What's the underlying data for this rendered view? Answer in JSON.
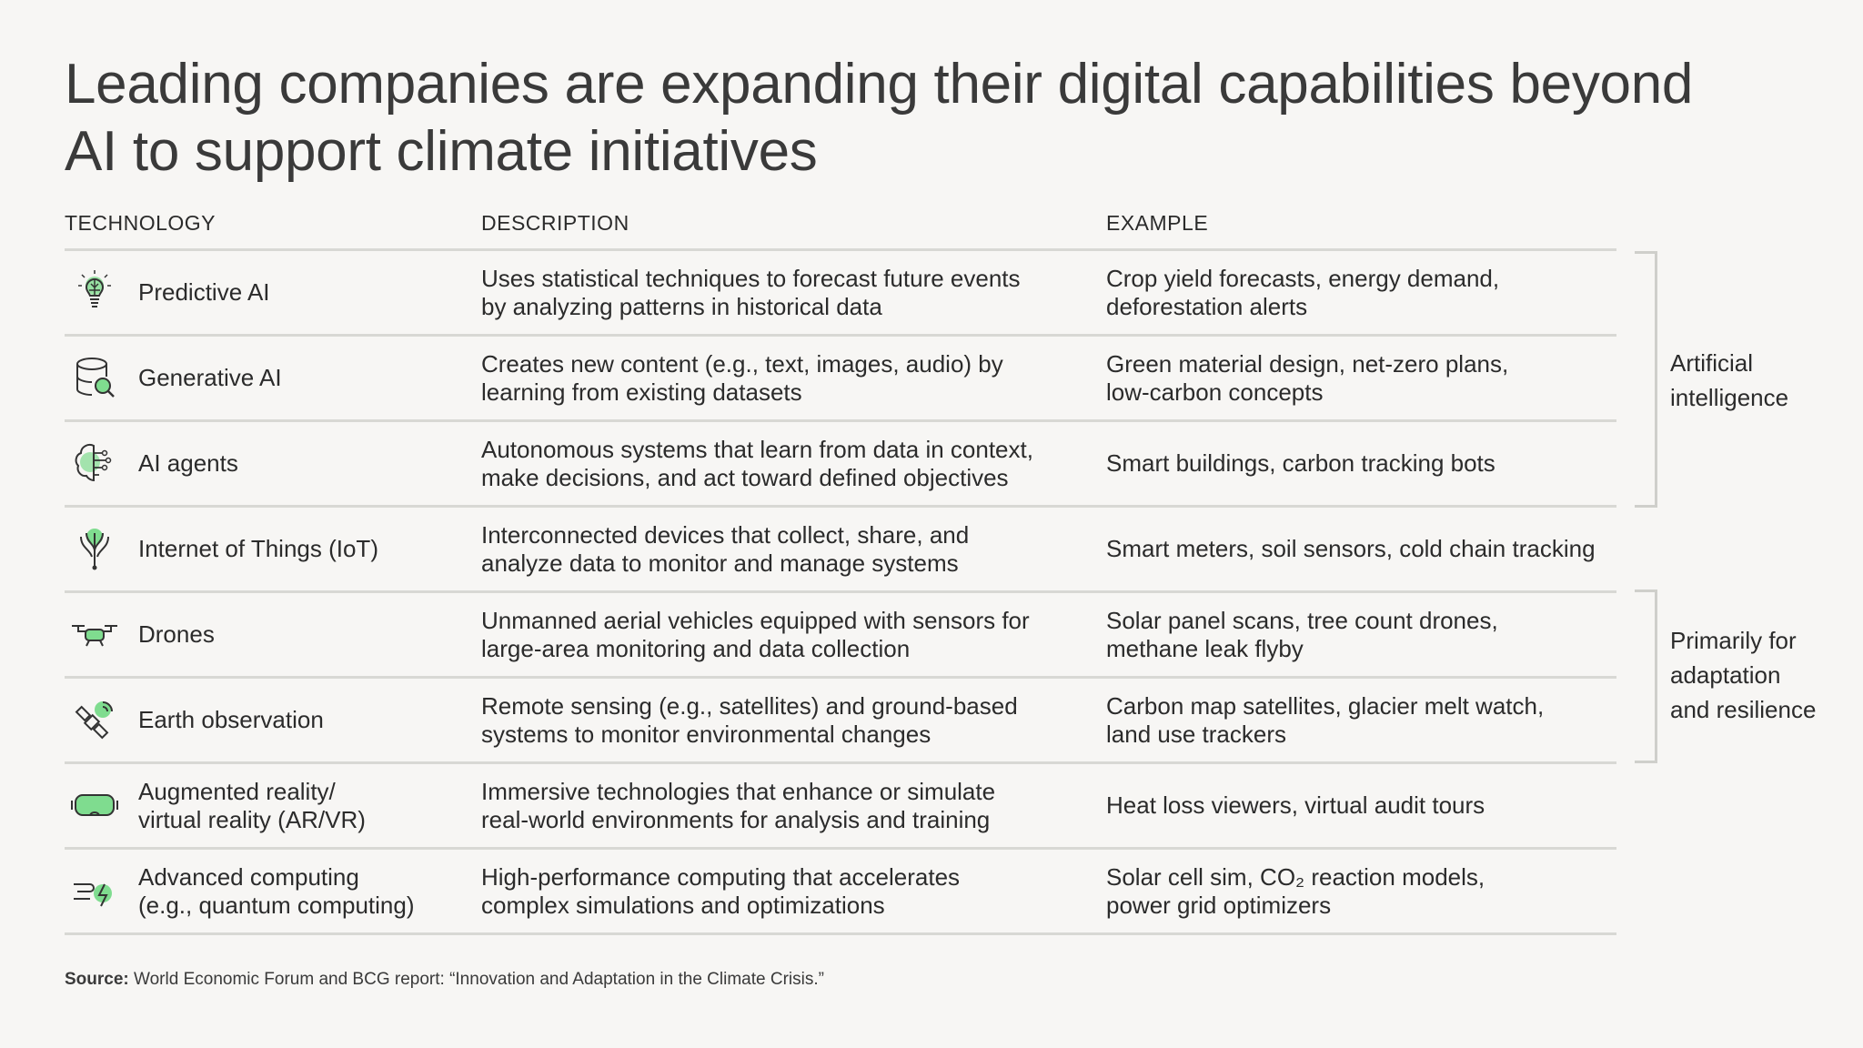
{
  "title": "Leading companies are expanding their digital capabilities beyond AI to support climate initiatives",
  "headers": {
    "technology": "TECHNOLOGY",
    "description": "DESCRIPTION",
    "example": "EXAMPLE"
  },
  "rows": [
    {
      "icon": "lightbulb-circuit-icon",
      "technology": "Predictive AI",
      "description": "Uses statistical techniques to forecast future events\nby analyzing patterns in historical data",
      "example": "Crop yield forecasts, energy demand,\ndeforestation alerts"
    },
    {
      "icon": "database-search-icon",
      "technology": "Generative AI",
      "description": "Creates new content (e.g., text, images, audio) by\nlearning from existing datasets",
      "example": "Green material design, net-zero plans,\nlow-carbon concepts"
    },
    {
      "icon": "brain-circuit-icon",
      "technology": "AI agents",
      "description": "Autonomous systems that learn from data in context,\nmake decisions, and act toward defined objectives",
      "example": "Smart buildings, carbon tracking bots"
    },
    {
      "icon": "iot-network-icon",
      "technology": "Internet of Things (IoT)",
      "description": "Interconnected devices that collect, share, and\nanalyze data to monitor and manage systems",
      "example": "Smart meters, soil sensors, cold chain tracking"
    },
    {
      "icon": "drone-icon",
      "technology": "Drones",
      "description": "Unmanned aerial vehicles equipped with sensors for\nlarge-area monitoring and data collection",
      "example": "Solar panel scans, tree count drones,\nmethane leak flyby"
    },
    {
      "icon": "satellite-icon",
      "technology": "Earth observation",
      "description": "Remote sensing (e.g., satellites) and ground-based\nsystems to monitor environmental changes",
      "example": "Carbon map satellites, glacier melt watch,\nland use trackers"
    },
    {
      "icon": "vr-headset-icon",
      "technology": "Augmented reality/\nvirtual reality (AR/VR)",
      "description": "Immersive technologies that enhance or simulate\nreal-world environments for analysis and training",
      "example": "Heat loss viewers, virtual audit tours"
    },
    {
      "icon": "quantum-computing-icon",
      "technology": "Advanced computing\n(e.g., quantum computing)",
      "description": "High-performance computing that accelerates\ncomplex simulations and optimizations",
      "example": "Solar cell sim, CO₂ reaction models,\npower grid optimizers"
    }
  ],
  "groups": [
    {
      "label": "Artificial\nintelligence"
    },
    {
      "label": "Primarily for\nadaptation\nand resilience"
    }
  ],
  "source": {
    "label": "Source:",
    "text": " World Economic Forum and BCG report: “Innovation and Adaptation in the Climate Crisis.”"
  },
  "colors": {
    "accent": "#7fdc8f",
    "rule": "#d8d8d4",
    "text": "#2b2b2b",
    "background": "#f7f6f4"
  }
}
